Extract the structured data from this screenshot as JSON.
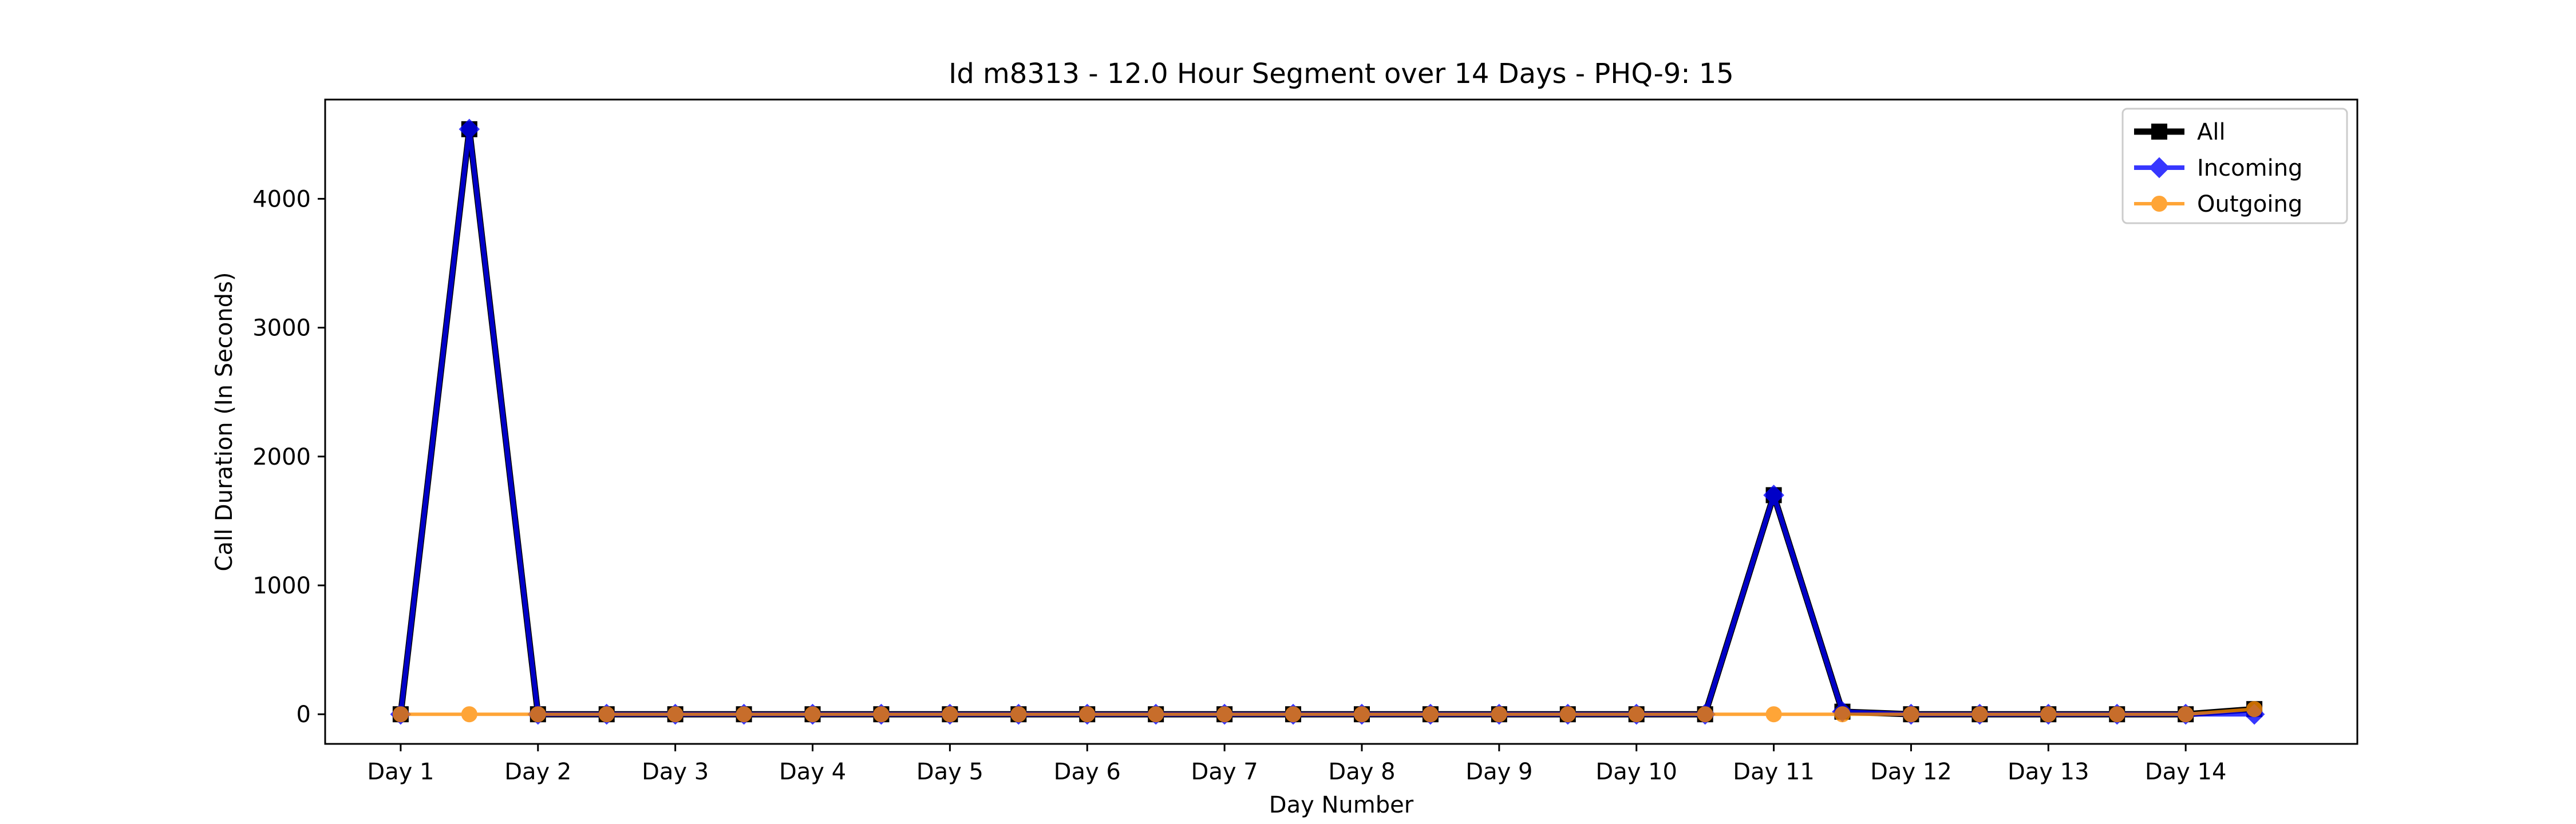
{
  "chart_data": {
    "type": "line",
    "title": "Id m8313 - 12.0 Hour Segment over 14 Days - PHQ-9: 15",
    "xlabel": "Day Number",
    "ylabel": "Call Duration (In Seconds)",
    "xticks": [
      "Day 1",
      "Day 2",
      "Day 3",
      "Day 4",
      "Day 5",
      "Day 6",
      "Day 7",
      "Day 8",
      "Day 9",
      "Day 10",
      "Day 11",
      "Day 12",
      "Day 13",
      "Day 14"
    ],
    "yticks": [
      0,
      1000,
      2000,
      3000,
      4000
    ],
    "ylim": [
      -230,
      4770
    ],
    "xlim": [
      0.45,
      15.25
    ],
    "grid": false,
    "legend_position": "top-right",
    "x": [
      1,
      1.5,
      2,
      2.5,
      3,
      3.5,
      4,
      4.5,
      5,
      5.5,
      6,
      6.5,
      7,
      7.5,
      8,
      8.5,
      9,
      9.5,
      10,
      10.5,
      11,
      11.5,
      12,
      12.5,
      13,
      13.5,
      14,
      14.5
    ],
    "series": [
      {
        "name": "All",
        "color": "#000000",
        "marker": "square",
        "values": [
          0,
          4540,
          0,
          0,
          0,
          0,
          0,
          0,
          0,
          0,
          0,
          0,
          0,
          0,
          0,
          0,
          0,
          0,
          0,
          0,
          1700,
          20,
          0,
          0,
          0,
          0,
          0,
          40
        ]
      },
      {
        "name": "Incoming",
        "color": "#0000ff",
        "marker": "diamond",
        "values": [
          0,
          4540,
          0,
          0,
          0,
          0,
          0,
          0,
          0,
          0,
          0,
          0,
          0,
          0,
          0,
          0,
          0,
          0,
          0,
          0,
          1700,
          20,
          0,
          0,
          0,
          0,
          0,
          0
        ]
      },
      {
        "name": "Outgoing",
        "color": "#ff8c00",
        "marker": "circle",
        "values": [
          0,
          0,
          0,
          0,
          0,
          0,
          0,
          0,
          0,
          0,
          0,
          0,
          0,
          0,
          0,
          0,
          0,
          0,
          0,
          0,
          0,
          0,
          0,
          0,
          0,
          0,
          0,
          40
        ]
      }
    ]
  }
}
